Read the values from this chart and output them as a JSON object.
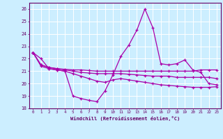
{
  "bg_color": "#cceeff",
  "grid_color": "#ffffff",
  "line_color": "#aa00aa",
  "xlim": [
    -0.5,
    23.5
  ],
  "ylim": [
    18,
    26.5
  ],
  "yticks": [
    18,
    19,
    20,
    21,
    22,
    23,
    24,
    25,
    26
  ],
  "xticks": [
    0,
    1,
    2,
    3,
    4,
    5,
    6,
    7,
    8,
    9,
    10,
    11,
    12,
    13,
    14,
    15,
    16,
    17,
    18,
    19,
    20,
    21,
    22,
    23
  ],
  "xlabel": "Windchill (Refroidissement éolien,°C)",
  "series1_x": [
    0,
    1,
    2,
    3,
    4,
    5,
    6,
    7,
    8,
    9,
    10,
    11,
    12,
    13,
    14,
    15,
    16,
    17,
    18,
    19,
    20,
    21,
    22,
    23
  ],
  "series1_y": [
    22.5,
    22.0,
    21.2,
    21.1,
    21.0,
    19.0,
    18.8,
    18.65,
    18.55,
    19.4,
    20.7,
    22.2,
    23.1,
    24.3,
    26.0,
    24.5,
    21.6,
    21.5,
    21.6,
    21.9,
    21.1,
    20.9,
    20.0,
    19.9
  ],
  "series2_x": [
    0,
    1,
    2,
    3,
    4,
    5,
    6,
    7,
    8,
    9,
    10,
    11,
    12,
    13,
    14,
    15,
    16,
    17,
    18,
    19,
    20,
    21,
    22,
    23
  ],
  "series2_y": [
    22.5,
    21.5,
    21.3,
    21.2,
    21.15,
    21.1,
    21.1,
    21.05,
    21.0,
    21.0,
    21.0,
    21.0,
    21.0,
    21.0,
    21.0,
    21.0,
    21.0,
    21.0,
    21.0,
    21.0,
    21.0,
    21.1,
    21.1,
    21.1
  ],
  "series3_x": [
    0,
    1,
    2,
    3,
    4,
    5,
    6,
    7,
    8,
    9,
    10,
    11,
    12,
    13,
    14,
    15,
    16,
    17,
    18,
    19,
    20,
    21,
    22,
    23
  ],
  "series3_y": [
    22.5,
    21.5,
    21.3,
    21.2,
    21.1,
    21.0,
    20.9,
    20.85,
    20.8,
    20.8,
    20.8,
    20.8,
    20.75,
    20.7,
    20.65,
    20.6,
    20.6,
    20.6,
    20.5,
    20.5,
    20.5,
    20.5,
    20.5,
    20.4
  ],
  "series4_x": [
    0,
    1,
    2,
    3,
    4,
    5,
    6,
    7,
    8,
    9,
    10,
    11,
    12,
    13,
    14,
    15,
    16,
    17,
    18,
    19,
    20,
    21,
    22,
    23
  ],
  "series4_y": [
    22.5,
    21.4,
    21.2,
    21.1,
    21.0,
    20.8,
    20.6,
    20.4,
    20.2,
    20.1,
    20.3,
    20.4,
    20.3,
    20.2,
    20.1,
    20.0,
    19.9,
    19.85,
    19.8,
    19.75,
    19.7,
    19.7,
    19.7,
    19.75
  ]
}
